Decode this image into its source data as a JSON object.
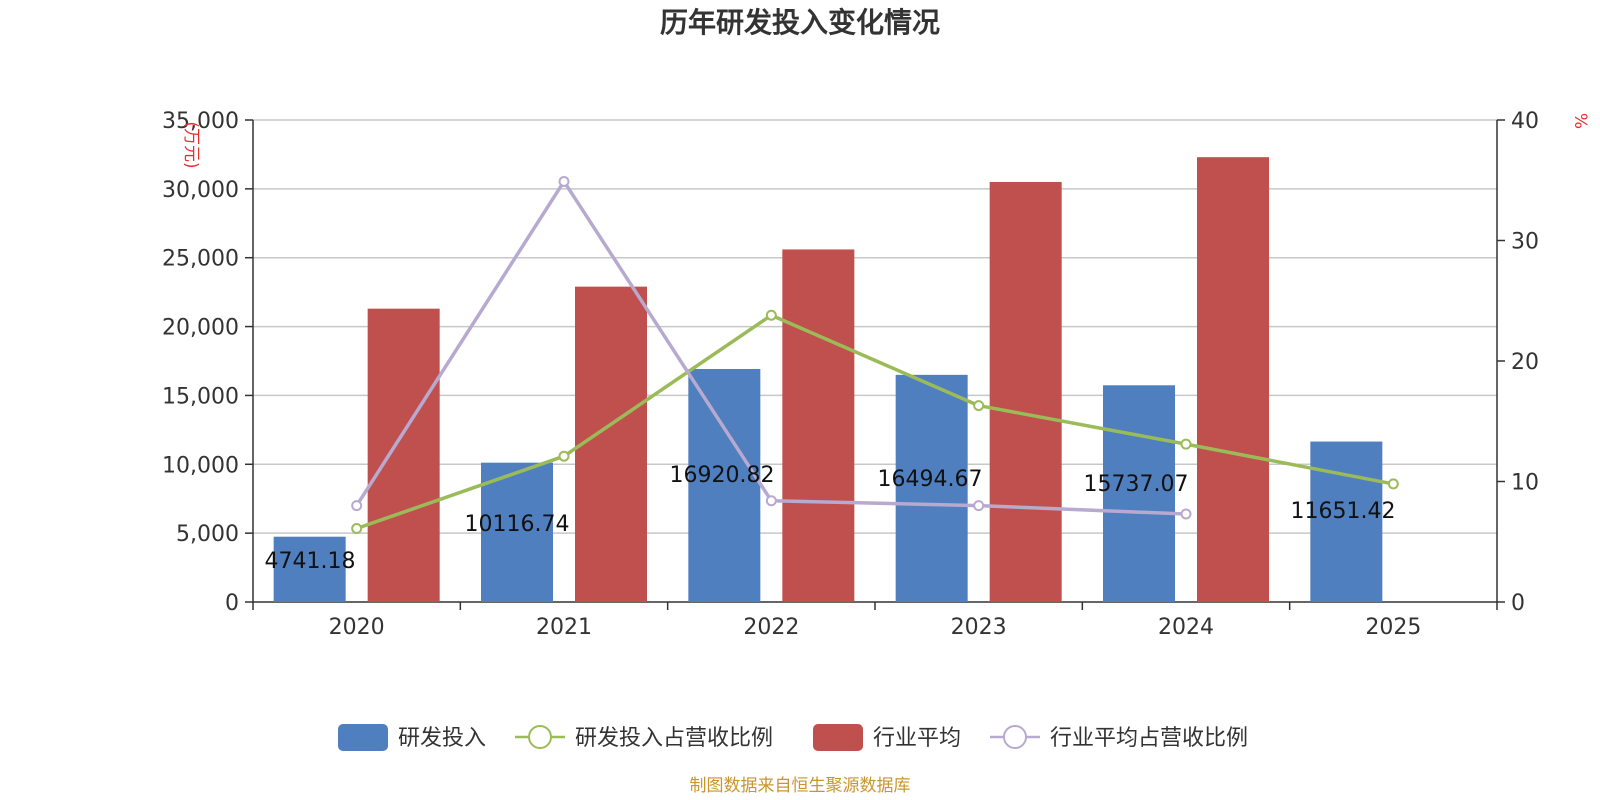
{
  "chart_data": {
    "type": "bar",
    "title": "历年研发投入变化情况",
    "categories": [
      "2020",
      "2021",
      "2022",
      "2023",
      "2024",
      "2025"
    ],
    "y_left": {
      "unit": "万元",
      "ylim": [
        0,
        35000
      ],
      "ticks": [
        "0",
        "5,000",
        "10,000",
        "15,000",
        "20,000",
        "25,000",
        "30,000",
        "35,000"
      ]
    },
    "y_right": {
      "unit": "%",
      "ylim": [
        0,
        40
      ],
      "ticks": [
        "0",
        "10",
        "20",
        "30",
        "40"
      ]
    },
    "series": [
      {
        "name": "研发投入",
        "kind": "bar",
        "axis": "left",
        "color": "#4f7fbf",
        "values": [
          4741.18,
          10116.74,
          16920.82,
          16494.67,
          15737.07,
          11651.42
        ],
        "labels": [
          "4741.18",
          "10116.74",
          "16920.82",
          "16494.67",
          "15737.07",
          "11651.42"
        ]
      },
      {
        "name": "研发投入占营收比例",
        "kind": "line",
        "axis": "right",
        "color": "#9bbb59",
        "values": [
          6.1,
          12.1,
          23.8,
          16.3,
          13.1,
          9.8
        ]
      },
      {
        "name": "行业平均",
        "kind": "bar",
        "axis": "left",
        "color": "#c0504d",
        "values": [
          21300,
          22900,
          25600,
          30500,
          32300,
          null
        ]
      },
      {
        "name": "行业平均占营收比例",
        "kind": "line",
        "axis": "right",
        "color": "#b7a9cf",
        "values": [
          8.0,
          34.9,
          8.4,
          8.0,
          7.3,
          null
        ]
      }
    ],
    "grid": true,
    "legend_position": "bottom"
  },
  "source_note": "制图数据来自恒生聚源数据库"
}
